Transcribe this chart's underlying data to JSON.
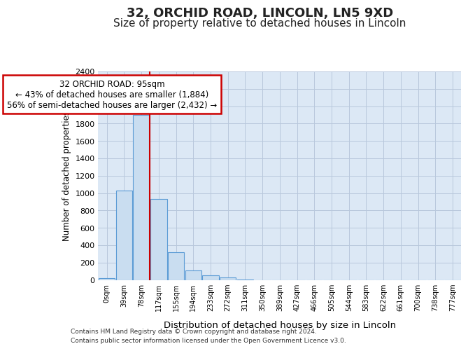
{
  "title_line1": "32, ORCHID ROAD, LINCOLN, LN5 9XD",
  "title_line2": "Size of property relative to detached houses in Lincoln",
  "xlabel": "Distribution of detached houses by size in Lincoln",
  "ylabel": "Number of detached properties",
  "footnote1": "Contains HM Land Registry data © Crown copyright and database right 2024.",
  "footnote2": "Contains public sector information licensed under the Open Government Licence v3.0.",
  "bar_labels": [
    "0sqm",
    "39sqm",
    "78sqm",
    "117sqm",
    "155sqm",
    "194sqm",
    "233sqm",
    "272sqm",
    "311sqm",
    "350sqm",
    "389sqm",
    "427sqm",
    "466sqm",
    "505sqm",
    "544sqm",
    "583sqm",
    "622sqm",
    "661sqm",
    "700sqm",
    "738sqm",
    "777sqm"
  ],
  "bar_values": [
    20,
    1025,
    1900,
    930,
    320,
    105,
    50,
    30,
    5,
    0,
    0,
    0,
    0,
    0,
    0,
    0,
    0,
    0,
    0,
    0,
    0
  ],
  "bar_color": "#c9ddf0",
  "bar_edge_color": "#5b9bd5",
  "red_line_x": 2.48,
  "annotation_text": "32 ORCHID ROAD: 95sqm\n← 43% of detached houses are smaller (1,884)\n56% of semi-detached houses are larger (2,432) →",
  "annotation_box_color": "#ffffff",
  "annotation_box_edge": "#cc0000",
  "ylim": [
    0,
    2400
  ],
  "yticks": [
    0,
    200,
    400,
    600,
    800,
    1000,
    1200,
    1400,
    1600,
    1800,
    2000,
    2200,
    2400
  ],
  "grid_color": "#b8c8dc",
  "plot_bg_color": "#dce8f5",
  "fig_bg_color": "#ffffff",
  "title_fontsize": 13,
  "subtitle_fontsize": 11,
  "annot_fontsize": 8.5
}
